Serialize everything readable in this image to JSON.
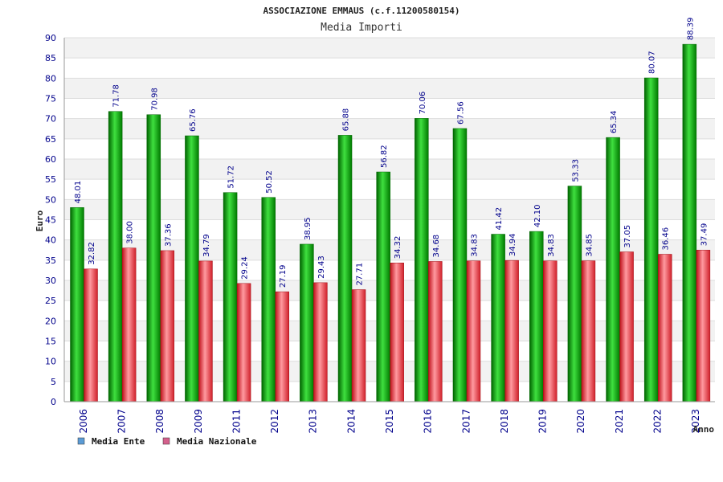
{
  "chart_data": {
    "type": "bar",
    "title": "ASSOCIAZIONE EMMAUS (c.f.11200580154)",
    "subtitle": "Media Importi",
    "xlabel": "Anno",
    "ylabel": "Euro",
    "ylim": [
      0,
      90
    ],
    "ytick_step": 5,
    "grid": true,
    "legend_position": "bottom-left",
    "categories": [
      "2006",
      "2007",
      "2008",
      "2009",
      "2011",
      "2012",
      "2013",
      "2014",
      "2015",
      "2016",
      "2017",
      "2018",
      "2019",
      "2020",
      "2021",
      "2022",
      "2023"
    ],
    "series": [
      {
        "name": "Media Ente",
        "color": "#00b000",
        "legend_color": "#5b9bd5",
        "values": [
          48.01,
          71.78,
          70.98,
          65.76,
          51.72,
          50.52,
          38.95,
          65.88,
          56.82,
          70.06,
          67.56,
          41.42,
          42.1,
          53.33,
          65.34,
          80.07,
          88.39
        ],
        "labels": [
          "48.01",
          "71.78",
          "70.98",
          "65.76",
          "51.72",
          "50.52",
          "38.95",
          "65.88",
          "56.82",
          "70.06",
          "67.56",
          "41.42",
          "42.10",
          "53.33",
          "65.34",
          "80.07",
          "88.39"
        ]
      },
      {
        "name": "Media Nazionale",
        "color": "#e0202a",
        "legend_color": "#d4608c",
        "values": [
          32.82,
          38.0,
          37.36,
          34.79,
          29.24,
          27.19,
          29.43,
          27.71,
          34.32,
          34.68,
          34.83,
          34.94,
          34.83,
          34.85,
          37.05,
          36.46,
          37.49
        ],
        "labels": [
          "32.82",
          "38.00",
          "37.36",
          "34.79",
          "29.24",
          "27.19",
          "29.43",
          "27.71",
          "34.32",
          "34.68",
          "34.83",
          "34.94",
          "34.83",
          "34.85",
          "37.05",
          "36.46",
          "37.49"
        ]
      }
    ]
  }
}
